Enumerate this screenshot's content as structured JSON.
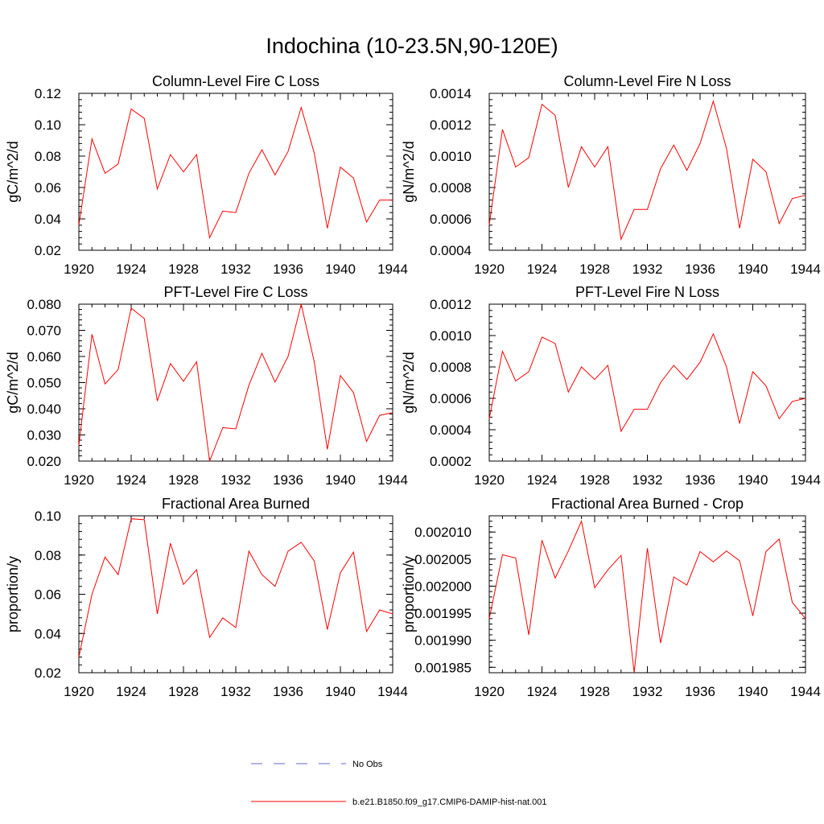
{
  "figure": {
    "title": "Indochina (10-23.5N,90-120E)",
    "legend": {
      "placement": "bottom-center",
      "entries": [
        {
          "label": "No Obs",
          "style": "dashed",
          "color": "#6666cc"
        },
        {
          "label": "b.e21.B1850.f09_g17.CMIP6-DAMIP-hist-nat.001",
          "style": "solid",
          "color": "#ff0000"
        }
      ]
    }
  },
  "chart_data": [
    {
      "type": "line",
      "title": "Column-Level Fire C Loss",
      "ylabel": "gC/m^2/d",
      "xlim": [
        1920,
        1944
      ],
      "ylim": [
        0.02,
        0.12
      ],
      "xticks": [
        1920,
        1924,
        1928,
        1932,
        1936,
        1940,
        1944
      ],
      "yticks": [
        0.02,
        0.04,
        0.06,
        0.08,
        0.1,
        0.12
      ],
      "ytick_labels": [
        "0.02",
        "0.04",
        "0.06",
        "0.08",
        "0.10",
        "0.12"
      ],
      "x": [
        1920,
        1921,
        1922,
        1923,
        1924,
        1925,
        1926,
        1927,
        1928,
        1929,
        1930,
        1931,
        1932,
        1933,
        1934,
        1935,
        1936,
        1937,
        1938,
        1939,
        1940,
        1941,
        1942,
        1943,
        1944
      ],
      "series": [
        {
          "name": "b.e21.B1850.f09_g17.CMIP6-DAMIP-hist-nat.001",
          "color": "#ff0000",
          "values": [
            0.036,
            0.091,
            0.069,
            0.075,
            0.11,
            0.104,
            0.059,
            0.081,
            0.07,
            0.081,
            0.028,
            0.045,
            0.044,
            0.069,
            0.084,
            0.068,
            0.083,
            0.111,
            0.082,
            0.034,
            0.073,
            0.066,
            0.038,
            0.052,
            0.052
          ]
        }
      ]
    },
    {
      "type": "line",
      "title": "Column-Level Fire N Loss",
      "ylabel": "gN/m^2/d",
      "xlim": [
        1920,
        1944
      ],
      "ylim": [
        0.0004,
        0.0014
      ],
      "xticks": [
        1920,
        1924,
        1928,
        1932,
        1936,
        1940,
        1944
      ],
      "yticks": [
        0.0004,
        0.0006,
        0.0008,
        0.001,
        0.0012,
        0.0014
      ],
      "ytick_labels": [
        "0.0004",
        "0.0006",
        "0.0008",
        "0.0010",
        "0.0012",
        "0.0014"
      ],
      "x": [
        1920,
        1921,
        1922,
        1923,
        1924,
        1925,
        1926,
        1927,
        1928,
        1929,
        1930,
        1931,
        1932,
        1933,
        1934,
        1935,
        1936,
        1937,
        1938,
        1939,
        1940,
        1941,
        1942,
        1943,
        1944
      ],
      "series": [
        {
          "name": "b.e21.B1850.f09_g17.CMIP6-DAMIP-hist-nat.001",
          "color": "#ff0000",
          "values": [
            0.00056,
            0.00117,
            0.00093,
            0.00099,
            0.00133,
            0.00126,
            0.0008,
            0.00106,
            0.00093,
            0.00106,
            0.00047,
            0.00066,
            0.00066,
            0.00092,
            0.00107,
            0.00091,
            0.00108,
            0.00135,
            0.00105,
            0.00054,
            0.00098,
            0.0009,
            0.00057,
            0.00073,
            0.00075
          ]
        }
      ]
    },
    {
      "type": "line",
      "title": "PFT-Level Fire C Loss",
      "ylabel": "gC/m^2/d",
      "xlim": [
        1920,
        1944
      ],
      "ylim": [
        0.02,
        0.08
      ],
      "xticks": [
        1920,
        1924,
        1928,
        1932,
        1936,
        1940,
        1944
      ],
      "yticks": [
        0.02,
        0.03,
        0.04,
        0.05,
        0.06,
        0.07,
        0.08
      ],
      "ytick_labels": [
        "0.020",
        "0.030",
        "0.040",
        "0.050",
        "0.060",
        "0.070",
        "0.080"
      ],
      "x": [
        1920,
        1921,
        1922,
        1923,
        1924,
        1925,
        1926,
        1927,
        1928,
        1929,
        1930,
        1931,
        1932,
        1933,
        1934,
        1935,
        1936,
        1937,
        1938,
        1939,
        1940,
        1941,
        1942,
        1943,
        1944
      ],
      "series": [
        {
          "name": "b.e21.B1850.f09_g17.CMIP6-DAMIP-hist-nat.001",
          "color": "#ff0000",
          "values": [
            0.026,
            0.0685,
            0.0495,
            0.055,
            0.0785,
            0.0745,
            0.043,
            0.0573,
            0.0505,
            0.058,
            0.02,
            0.0328,
            0.0323,
            0.049,
            0.0612,
            0.0502,
            0.06,
            0.08,
            0.058,
            0.0245,
            0.0527,
            0.0462,
            0.0275,
            0.0375,
            0.0385
          ]
        }
      ]
    },
    {
      "type": "line",
      "title": "PFT-Level Fire N Loss",
      "ylabel": "gN/m^2/d",
      "xlim": [
        1920,
        1944
      ],
      "ylim": [
        0.0002,
        0.0012
      ],
      "xticks": [
        1920,
        1924,
        1928,
        1932,
        1936,
        1940,
        1944
      ],
      "yticks": [
        0.0002,
        0.0004,
        0.0006,
        0.0008,
        0.001,
        0.0012
      ],
      "ytick_labels": [
        "0.0002",
        "0.0004",
        "0.0006",
        "0.0008",
        "0.0010",
        "0.0012"
      ],
      "x": [
        1920,
        1921,
        1922,
        1923,
        1924,
        1925,
        1926,
        1927,
        1928,
        1929,
        1930,
        1931,
        1932,
        1933,
        1934,
        1935,
        1936,
        1937,
        1938,
        1939,
        1940,
        1941,
        1942,
        1943,
        1944
      ],
      "series": [
        {
          "name": "b.e21.B1850.f09_g17.CMIP6-DAMIP-hist-nat.001",
          "color": "#ff0000",
          "values": [
            0.00047,
            0.0009,
            0.00071,
            0.00077,
            0.00099,
            0.00095,
            0.00064,
            0.0008,
            0.00072,
            0.00081,
            0.00039,
            0.00053,
            0.00053,
            0.0007,
            0.00081,
            0.00072,
            0.00083,
            0.00101,
            0.0008,
            0.00044,
            0.00077,
            0.00068,
            0.00047,
            0.00058,
            0.0006
          ]
        }
      ]
    },
    {
      "type": "line",
      "title": "Fractional Area Burned",
      "ylabel": "proportion/y",
      "xlim": [
        1920,
        1944
      ],
      "ylim": [
        0.02,
        0.1
      ],
      "xticks": [
        1920,
        1924,
        1928,
        1932,
        1936,
        1940,
        1944
      ],
      "yticks": [
        0.02,
        0.04,
        0.06,
        0.08,
        0.1
      ],
      "ytick_labels": [
        "0.02",
        "0.04",
        "0.06",
        "0.08",
        "0.10"
      ],
      "x": [
        1920,
        1921,
        1922,
        1923,
        1924,
        1925,
        1926,
        1927,
        1928,
        1929,
        1930,
        1931,
        1932,
        1933,
        1934,
        1935,
        1936,
        1937,
        1938,
        1939,
        1940,
        1941,
        1942,
        1943,
        1944
      ],
      "series": [
        {
          "name": "b.e21.B1850.f09_g17.CMIP6-DAMIP-hist-nat.001",
          "color": "#ff0000",
          "values": [
            0.028,
            0.06,
            0.079,
            0.07,
            0.0985,
            0.098,
            0.05,
            0.086,
            0.065,
            0.0725,
            0.038,
            0.048,
            0.043,
            0.082,
            0.07,
            0.064,
            0.082,
            0.0865,
            0.077,
            0.042,
            0.071,
            0.0815,
            0.041,
            0.052,
            0.05
          ]
        }
      ]
    },
    {
      "type": "line",
      "title": "Fractional Area Burned - Crop",
      "ylabel": "proportion/y",
      "xlim": [
        1920,
        1944
      ],
      "ylim": [
        0.001984,
        0.002013
      ],
      "xticks": [
        1920,
        1924,
        1928,
        1932,
        1936,
        1940,
        1944
      ],
      "yticks": [
        0.001985,
        0.00199,
        0.001995,
        0.002,
        0.002005,
        0.00201
      ],
      "ytick_labels": [
        "0.001985",
        "0.001990",
        "0.001995",
        "0.002000",
        "0.002005",
        "0.002010"
      ],
      "x": [
        1920,
        1921,
        1922,
        1923,
        1924,
        1925,
        1926,
        1927,
        1928,
        1929,
        1930,
        1931,
        1932,
        1933,
        1934,
        1935,
        1936,
        1937,
        1938,
        1939,
        1940,
        1941,
        1942,
        1943,
        1944
      ],
      "series": [
        {
          "name": "b.e21.B1850.f09_g17.CMIP6-DAMIP-hist-nat.001",
          "color": "#ff0000",
          "values": [
            0.001994,
            0.0020058,
            0.0020052,
            0.001991,
            0.0020085,
            0.0020015,
            0.0020065,
            0.002012,
            0.0019997,
            0.002003,
            0.0020057,
            0.001984,
            0.002007,
            0.0019895,
            0.0020017,
            0.0020002,
            0.0020064,
            0.0020045,
            0.0020065,
            0.0020047,
            0.0019945,
            0.0020064,
            0.0020087,
            0.001997,
            0.001994
          ]
        }
      ]
    }
  ]
}
